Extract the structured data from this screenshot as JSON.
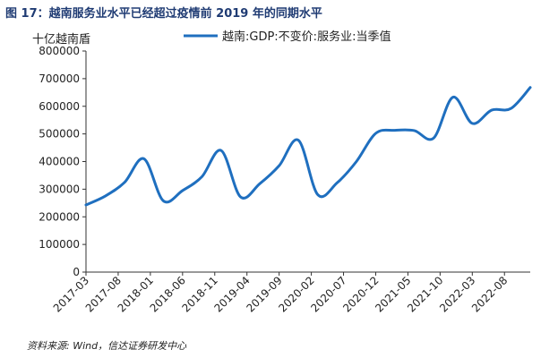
{
  "figure": {
    "title": "图 17：越南服务业水平已经超过疫情前 2019 年的同期水平",
    "unit": "十亿越南盾",
    "source": "资料来源: Wind，信达证券研发中心"
  },
  "chart_data": {
    "type": "line",
    "title": "",
    "ylabel": "十亿越南盾",
    "ylim": [
      0,
      800000
    ],
    "yticks": [
      0,
      100000,
      200000,
      300000,
      400000,
      500000,
      600000,
      700000,
      800000
    ],
    "xticks": [
      "2017-03",
      "2017-08",
      "2018-01",
      "2018-06",
      "2018-11",
      "2019-04",
      "2019-09",
      "2020-02",
      "2020-07",
      "2020-12",
      "2021-05",
      "2021-10",
      "2022-03",
      "2022-08"
    ],
    "x": [
      "2017-03",
      "2017-06",
      "2017-09",
      "2017-12",
      "2018-03",
      "2018-06",
      "2018-09",
      "2018-12",
      "2019-03",
      "2019-06",
      "2019-09",
      "2019-12",
      "2020-03",
      "2020-06",
      "2020-09",
      "2020-12",
      "2021-03",
      "2021-06",
      "2021-09",
      "2021-12",
      "2022-03",
      "2022-06",
      "2022-09",
      "2022-12"
    ],
    "series": [
      {
        "name": "越南:GDP:不变价:服务业:当季值",
        "color": "#1f6fbf",
        "values": [
          243000,
          275000,
          325000,
          410000,
          258000,
          295000,
          345000,
          440000,
          272000,
          320000,
          385000,
          477000,
          280000,
          323000,
          400000,
          502000,
          513000,
          512000,
          485000,
          633000,
          538000,
          586000,
          592000,
          668000
        ]
      }
    ],
    "legend_position": "top-center",
    "grid": false
  }
}
